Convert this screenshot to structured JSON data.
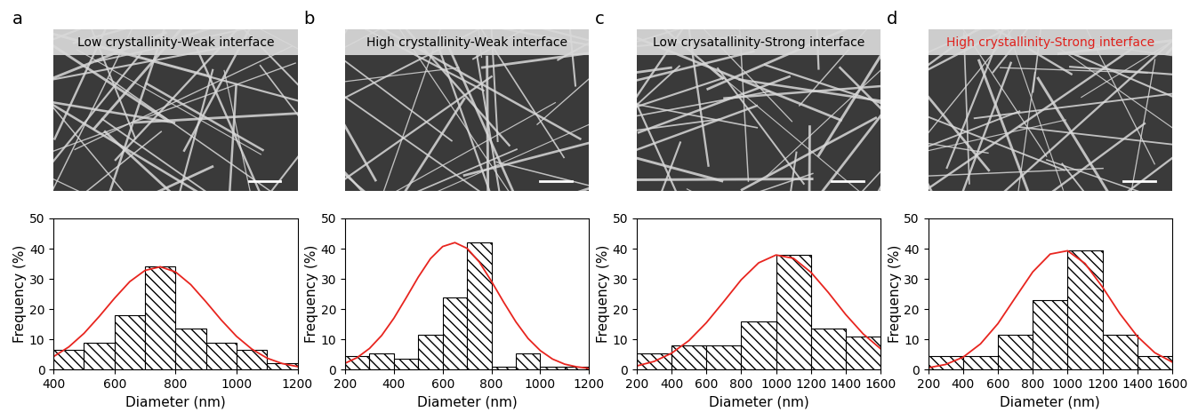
{
  "chart_data": [
    {
      "type": "histogram",
      "annotations": [
        "a"
      ],
      "title": "Low crystallinity-Weak interface",
      "x_label": "Diameter (nm)",
      "y_label": "Frequency (%)",
      "bins": [
        400,
        500,
        600,
        700,
        800,
        900,
        1000,
        1100,
        1200
      ],
      "counts": [
        6.5,
        9,
        18,
        34,
        13.5,
        9,
        6.5,
        2
      ],
      "color": "#ffffff",
      "xlim": [
        400,
        1200
      ],
      "xticks": [
        400,
        600,
        800,
        1000,
        1200
      ],
      "ylim": [
        0,
        50
      ],
      "yticks": [
        0,
        10,
        20,
        30,
        40,
        50
      ],
      "series": [
        {
          "type": "line",
          "color": "#e8251f",
          "x": [
            400,
            450,
            500,
            550,
            600,
            650,
            700,
            750,
            800,
            850,
            900,
            950,
            1000,
            1050,
            1100,
            1150,
            1200
          ],
          "values": [
            4.3,
            7.5,
            12.0,
            17.6,
            23.6,
            29.1,
            32.8,
            34.0,
            32.3,
            28.1,
            22.4,
            16.4,
            11.0,
            6.8,
            3.8,
            2.0,
            1.0
          ]
        }
      ]
    },
    {
      "type": "histogram",
      "annotations": [
        "b"
      ],
      "title": "High crystallinity-Weak interface",
      "x_label": "Diameter (nm)",
      "y_label": "Frequency (%)",
      "bins": [
        200,
        300,
        400,
        500,
        600,
        700,
        800,
        900,
        1000,
        1100,
        1200
      ],
      "counts": [
        4.5,
        5.5,
        3.5,
        11.5,
        24,
        42,
        1,
        5.5,
        1,
        1
      ],
      "color": "#ffffff",
      "xlim": [
        200,
        1200
      ],
      "xticks": [
        200,
        400,
        600,
        800,
        1000,
        1200
      ],
      "ylim": [
        0,
        50
      ],
      "yticks": [
        0,
        10,
        20,
        30,
        40,
        50
      ],
      "series": [
        {
          "type": "line",
          "color": "#e8251f",
          "x": [
            200,
            250,
            300,
            350,
            400,
            450,
            500,
            550,
            600,
            650,
            700,
            750,
            800,
            850,
            900,
            950,
            1000,
            1050,
            1100,
            1150,
            1200
          ],
          "values": [
            2.1,
            4.0,
            7.0,
            11.3,
            17.0,
            23.7,
            30.6,
            36.7,
            40.7,
            42.0,
            40.1,
            35.6,
            29.2,
            22.3,
            15.8,
            10.3,
            6.3,
            3.5,
            1.8,
            0.9,
            0.4
          ]
        }
      ]
    },
    {
      "type": "histogram",
      "annotations": [
        "c"
      ],
      "title": "Low crysatallinity-Strong interface",
      "x_label": "Diameter (nm)",
      "y_label": "Frequency (%)",
      "bins": [
        200,
        400,
        600,
        800,
        1000,
        1200,
        1400,
        1600
      ],
      "counts": [
        5.5,
        8,
        8,
        16,
        38,
        13.5,
        11
      ],
      "color": "#ffffff",
      "xlim": [
        200,
        1600
      ],
      "xticks": [
        200,
        400,
        600,
        800,
        1000,
        1200,
        1400,
        1600
      ],
      "ylim": [
        0,
        50
      ],
      "yticks": [
        0,
        10,
        20,
        30,
        40,
        50
      ],
      "series": [
        {
          "type": "line",
          "color": "#e8251f",
          "x": [
            200,
            300,
            400,
            500,
            600,
            700,
            800,
            900,
            1000,
            1100,
            1200,
            1300,
            1400,
            1500,
            1600
          ],
          "values": [
            1.2,
            2.7,
            5.4,
            9.6,
            15.5,
            22.5,
            29.7,
            35.3,
            37.9,
            36.8,
            32.2,
            25.5,
            18.2,
            11.8,
            6.9
          ]
        }
      ]
    },
    {
      "type": "histogram",
      "annotations": [
        "d"
      ],
      "title": "High crystallinity-Strong interface",
      "x_label": "Diameter (nm)",
      "y_label": "Frequency (%)",
      "bins": [
        200,
        400,
        600,
        800,
        1000,
        1200,
        1400,
        1600
      ],
      "counts": [
        4.5,
        4.5,
        11.5,
        23,
        39.5,
        11.5,
        4.5
      ],
      "color": "#ffffff",
      "xlim": [
        200,
        1600
      ],
      "xticks": [
        200,
        400,
        600,
        800,
        1000,
        1200,
        1400,
        1600
      ],
      "ylim": [
        0,
        50
      ],
      "yticks": [
        0,
        10,
        20,
        30,
        40,
        50
      ],
      "series": [
        {
          "type": "line",
          "color": "#e8251f",
          "x": [
            200,
            300,
            400,
            500,
            600,
            700,
            800,
            900,
            1000,
            1100,
            1200,
            1300,
            1400,
            1500,
            1600
          ],
          "values": [
            0.6,
            1.7,
            4.1,
            8.5,
            15.2,
            23.8,
            32.3,
            38.2,
            39.3,
            35.1,
            27.3,
            18.5,
            11.0,
            5.6,
            2.5
          ]
        }
      ]
    }
  ]
}
